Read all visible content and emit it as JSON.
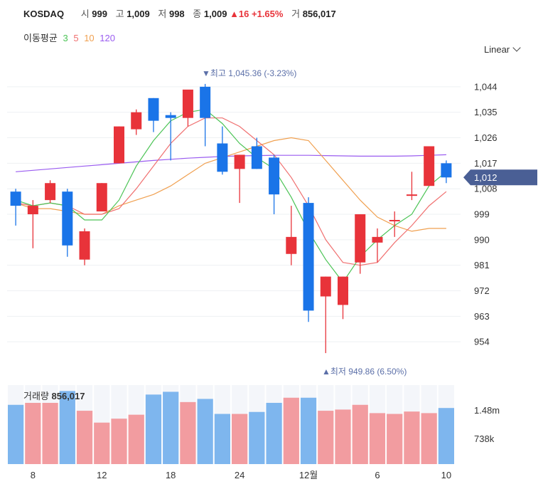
{
  "header": {
    "name": "KOSDAQ",
    "open_label": "시",
    "open": "999",
    "high_label": "고",
    "high": "1,009",
    "low_label": "저",
    "low": "998",
    "close_label": "종",
    "close": "1,009",
    "change": "▲16 +1.65%",
    "volume_label": "거",
    "volume": "856,017"
  },
  "ma_legend": {
    "label": "이동평균",
    "items": [
      {
        "text": "3",
        "color": "#4cc456"
      },
      {
        "text": "5",
        "color": "#f07070"
      },
      {
        "text": "10",
        "color": "#f0a050"
      },
      {
        "text": "120",
        "color": "#9a5cf0"
      }
    ]
  },
  "scale_selector": "Linear",
  "colors": {
    "up": "#e8333a",
    "down": "#1a74e8",
    "up_vol": "#f29ca0",
    "down_vol": "#7eb6ee",
    "price_tag": "#4a5f95"
  },
  "chart_data": {
    "type": "candlestick",
    "yticks": [
      1044,
      1035,
      1026,
      1017,
      1008,
      999,
      990,
      981,
      972,
      963,
      954
    ],
    "ytick_labels": [
      "1,044",
      "1,035",
      "1,026",
      "1,017",
      "1,008",
      "999",
      "990",
      "981",
      "972",
      "963",
      "954"
    ],
    "ylim": [
      946,
      1050
    ],
    "xtick_labels": [
      {
        "index": 1,
        "label": "8"
      },
      {
        "index": 5,
        "label": "12"
      },
      {
        "index": 9,
        "label": "18"
      },
      {
        "index": 13,
        "label": "24"
      },
      {
        "index": 17,
        "label": "12월"
      },
      {
        "index": 21,
        "label": "6"
      },
      {
        "index": 25,
        "label": "10"
      }
    ],
    "candles": [
      {
        "o": 1007,
        "h": 1008,
        "l": 995,
        "c": 1002
      },
      {
        "o": 999,
        "h": 1004,
        "l": 987,
        "c": 1002
      },
      {
        "o": 1004,
        "h": 1011,
        "l": 1003,
        "c": 1010
      },
      {
        "o": 1007,
        "h": 1008,
        "l": 984,
        "c": 988
      },
      {
        "o": 983,
        "h": 994,
        "l": 981,
        "c": 993
      },
      {
        "o": 1000,
        "h": 1010,
        "l": 1000,
        "c": 1010
      },
      {
        "o": 1017,
        "h": 1030,
        "l": 1017,
        "c": 1030
      },
      {
        "o": 1029,
        "h": 1036,
        "l": 1027,
        "c": 1035
      },
      {
        "o": 1040,
        "h": 1040,
        "l": 1028,
        "c": 1032
      },
      {
        "o": 1034,
        "h": 1035,
        "l": 1018,
        "c": 1033
      },
      {
        "o": 1033,
        "h": 1042,
        "l": 1030,
        "c": 1043
      },
      {
        "o": 1044,
        "h": 1045,
        "l": 1023,
        "c": 1033
      },
      {
        "o": 1024,
        "h": 1030,
        "l": 1013,
        "c": 1014
      },
      {
        "o": 1015,
        "h": 1020,
        "l": 1003,
        "c": 1020
      },
      {
        "o": 1023,
        "h": 1026,
        "l": 1015,
        "c": 1015
      },
      {
        "o": 1019,
        "h": 1020,
        "l": 999,
        "c": 1006
      },
      {
        "o": 985,
        "h": 1002,
        "l": 981,
        "c": 991
      },
      {
        "o": 1003,
        "h": 1005,
        "l": 961,
        "c": 965
      },
      {
        "o": 970,
        "h": 977,
        "l": 950,
        "c": 977
      },
      {
        "o": 967,
        "h": 977,
        "l": 962,
        "c": 977
      },
      {
        "o": 982,
        "h": 999,
        "l": 978,
        "c": 999
      },
      {
        "o": 989,
        "h": 994,
        "l": 982,
        "c": 991
      },
      {
        "o": 997,
        "h": 1000,
        "l": 991,
        "c": 997
      },
      {
        "o": 1006,
        "h": 1014,
        "l": 1004,
        "c": 1006
      },
      {
        "o": 1009,
        "h": 1023,
        "l": 1009,
        "c": 1023
      },
      {
        "o": 1017,
        "h": 1018,
        "l": 1010,
        "c": 1012
      }
    ],
    "ma": {
      "3": [
        1004,
        1002,
        1003,
        1002,
        997,
        997,
        1004,
        1016,
        1025,
        1032,
        1035,
        1036,
        1031,
        1024,
        1019,
        1015,
        1005,
        993,
        983,
        975,
        984,
        990,
        995,
        999,
        1009,
        1014
      ],
      "5": [
        1003,
        1002,
        1003,
        1002,
        999,
        999,
        1001,
        1008,
        1016,
        1024,
        1030,
        1033,
        1033,
        1030,
        1025,
        1020,
        1012,
        1002,
        990,
        982,
        981,
        982,
        989,
        995,
        1002,
        1007
      ],
      "10": [
        1003,
        1001,
        1001,
        1000,
        999,
        999,
        1002,
        1004,
        1006,
        1009,
        1013,
        1017,
        1019,
        1021,
        1023,
        1025,
        1026,
        1025,
        1018,
        1011,
        1004,
        998,
        995,
        993,
        994,
        994
      ],
      "120": [
        1014,
        1014.5,
        1015,
        1015.5,
        1016,
        1016.5,
        1017,
        1017.5,
        1018,
        1018.4,
        1018.8,
        1019.1,
        1019.4,
        1019.6,
        1019.7,
        1019.8,
        1019.8,
        1019.8,
        1019.7,
        1019.6,
        1019.5,
        1019.5,
        1019.5,
        1019.6,
        1019.8,
        1020
      ]
    },
    "max_label": "▼최고 1,045.36 (-3.23%)",
    "min_label": "▲최저 949.86 (6.50%)",
    "current_price_label": "1,012",
    "volume": {
      "title": "거래량",
      "value": "856,017",
      "yticks": [
        "1.48m",
        "738k"
      ],
      "values": [
        1.5,
        1.55,
        1.55,
        1.85,
        1.35,
        1.05,
        1.15,
        1.25,
        1.76,
        1.83,
        1.57,
        1.65,
        1.27,
        1.27,
        1.32,
        1.55,
        1.68,
        1.68,
        1.35,
        1.38,
        1.5,
        1.29,
        1.27,
        1.33,
        1.29,
        1.42
      ]
    }
  }
}
